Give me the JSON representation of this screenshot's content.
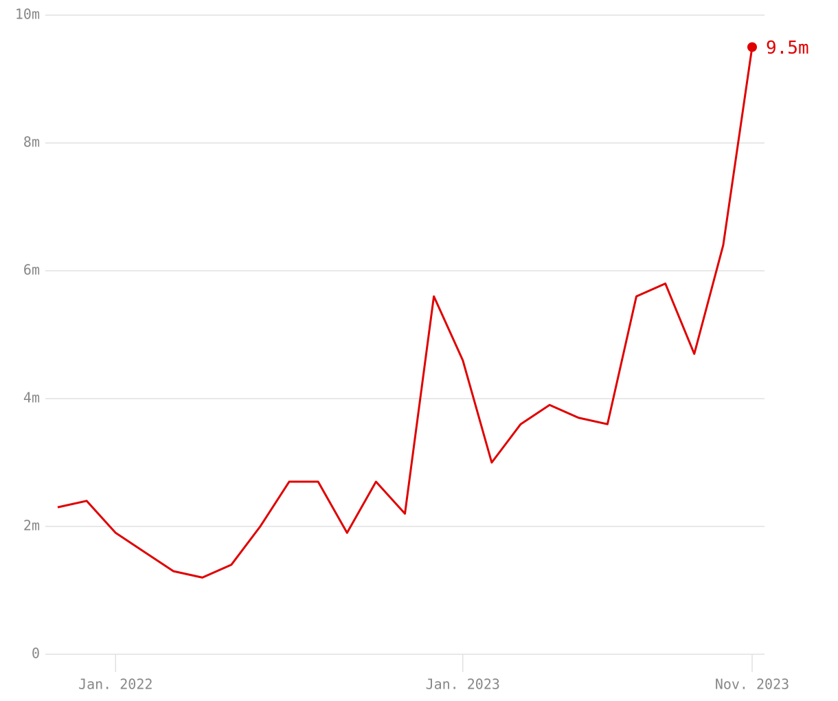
{
  "chart_data": {
    "type": "line",
    "x": [
      "2021-11",
      "2021-12",
      "2022-01",
      "2022-02",
      "2022-03",
      "2022-04",
      "2022-05",
      "2022-06",
      "2022-07",
      "2022-08",
      "2022-09",
      "2022-10",
      "2022-11",
      "2022-12",
      "2023-01",
      "2023-02",
      "2023-03",
      "2023-04",
      "2023-05",
      "2023-06",
      "2023-07",
      "2023-08",
      "2023-09",
      "2023-10",
      "2023-11"
    ],
    "series": [
      {
        "color": "#e00000",
        "values": [
          2.3,
          2.4,
          1.9,
          1.6,
          1.3,
          1.2,
          1.4,
          2.0,
          2.7,
          2.7,
          1.9,
          2.7,
          2.2,
          5.6,
          4.6,
          3.0,
          3.6,
          3.9,
          3.7,
          3.6,
          5.6,
          5.8,
          4.7,
          6.4,
          9.5
        ],
        "value_labels": [
          null,
          null,
          null,
          null,
          null,
          null,
          null,
          null,
          null,
          null,
          null,
          null,
          null,
          null,
          null,
          null,
          null,
          null,
          null,
          null,
          null,
          null,
          null,
          null,
          "9.5m"
        ]
      }
    ],
    "ylim": [
      0,
      10
    ],
    "yticks": [
      0,
      {
        "value": 2,
        "label": "2m"
      },
      {
        "value": 4,
        "label": "4m"
      },
      {
        "value": 6,
        "label": "6m"
      },
      {
        "value": 8,
        "label": "8m"
      },
      {
        "value": 10,
        "label": "10m"
      }
    ],
    "xticks": [
      {
        "value": "2022-01",
        "label": "Jan. 2022"
      },
      {
        "value": "2023-01",
        "label": "Jan. 2023"
      },
      {
        "value": "2023-11",
        "label": "Nov. 2023"
      }
    ],
    "grid": true
  }
}
